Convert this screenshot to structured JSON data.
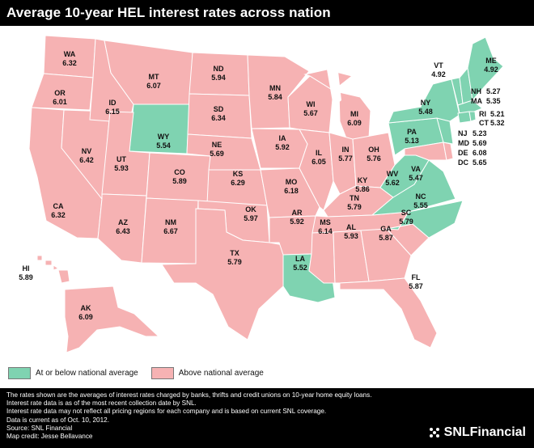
{
  "title": "Average 10-year HEL interest rates across nation",
  "colors": {
    "above": "#f6b2b3",
    "below": "#7fd3b1"
  },
  "legend": {
    "below_label": "At or below national average",
    "above_label": "Above national average"
  },
  "states": {
    "WA": {
      "name": "WA",
      "rate": "6.32",
      "category": "above"
    },
    "OR": {
      "name": "OR",
      "rate": "6.01",
      "category": "above"
    },
    "CA": {
      "name": "CA",
      "rate": "6.32",
      "category": "above"
    },
    "NV": {
      "name": "NV",
      "rate": "6.42",
      "category": "above"
    },
    "ID": {
      "name": "ID",
      "rate": "6.15",
      "category": "above"
    },
    "MT": {
      "name": "MT",
      "rate": "6.07",
      "category": "above"
    },
    "WY": {
      "name": "WY",
      "rate": "5.54",
      "category": "below"
    },
    "UT": {
      "name": "UT",
      "rate": "5.93",
      "category": "above"
    },
    "AZ": {
      "name": "AZ",
      "rate": "6.43",
      "category": "above"
    },
    "CO": {
      "name": "CO",
      "rate": "5.89",
      "category": "above"
    },
    "NM": {
      "name": "NM",
      "rate": "6.67",
      "category": "above"
    },
    "ND": {
      "name": "ND",
      "rate": "5.94",
      "category": "above"
    },
    "SD": {
      "name": "SD",
      "rate": "6.34",
      "category": "above"
    },
    "NE": {
      "name": "NE",
      "rate": "5.69",
      "category": "above"
    },
    "KS": {
      "name": "KS",
      "rate": "6.29",
      "category": "above"
    },
    "OK": {
      "name": "OK",
      "rate": "5.97",
      "category": "above"
    },
    "TX": {
      "name": "TX",
      "rate": "5.79",
      "category": "above"
    },
    "MN": {
      "name": "MN",
      "rate": "5.84",
      "category": "above"
    },
    "IA": {
      "name": "IA",
      "rate": "5.92",
      "category": "above"
    },
    "MO": {
      "name": "MO",
      "rate": "6.18",
      "category": "above"
    },
    "AR": {
      "name": "AR",
      "rate": "5.92",
      "category": "above"
    },
    "LA": {
      "name": "LA",
      "rate": "5.52",
      "category": "below"
    },
    "WI": {
      "name": "WI",
      "rate": "5.67",
      "category": "above"
    },
    "IL": {
      "name": "IL",
      "rate": "6.05",
      "category": "above"
    },
    "MI": {
      "name": "MI",
      "rate": "6.09",
      "category": "above"
    },
    "IN": {
      "name": "IN",
      "rate": "5.77",
      "category": "above"
    },
    "OH": {
      "name": "OH",
      "rate": "5.76",
      "category": "above"
    },
    "KY": {
      "name": "KY",
      "rate": "5.86",
      "category": "above"
    },
    "TN": {
      "name": "TN",
      "rate": "5.79",
      "category": "above"
    },
    "MS": {
      "name": "MS",
      "rate": "6.14",
      "category": "above"
    },
    "AL": {
      "name": "AL",
      "rate": "5.93",
      "category": "above"
    },
    "GA": {
      "name": "GA",
      "rate": "5.87",
      "category": "above"
    },
    "FL": {
      "name": "FL",
      "rate": "5.87",
      "category": "above"
    },
    "SC": {
      "name": "SC",
      "rate": "5.79",
      "category": "above"
    },
    "NC": {
      "name": "NC",
      "rate": "5.55",
      "category": "below"
    },
    "VA": {
      "name": "VA",
      "rate": "5.47",
      "category": "below"
    },
    "WV": {
      "name": "WV",
      "rate": "5.62",
      "category": "below"
    },
    "PA": {
      "name": "PA",
      "rate": "5.13",
      "category": "below"
    },
    "NY": {
      "name": "NY",
      "rate": "5.48",
      "category": "below"
    },
    "VT": {
      "name": "VT",
      "rate": "4.92",
      "category": "below"
    },
    "ME": {
      "name": "ME",
      "rate": "4.92",
      "category": "below"
    },
    "NH": {
      "name": "NH",
      "rate": "5.27",
      "category": "below"
    },
    "MA": {
      "name": "MA",
      "rate": "5.35",
      "category": "below"
    },
    "RI": {
      "name": "RI",
      "rate": "5.21",
      "category": "below"
    },
    "CT": {
      "name": "CT",
      "rate": "5.32",
      "category": "below"
    },
    "NJ": {
      "name": "NJ",
      "rate": "5.23",
      "category": "below"
    },
    "MD": {
      "name": "MD",
      "rate": "5.69",
      "category": "above"
    },
    "DE": {
      "name": "DE",
      "rate": "6.08",
      "category": "above"
    },
    "DC": {
      "name": "DC",
      "rate": "5.65",
      "category": "above"
    },
    "HI": {
      "name": "HI",
      "rate": "5.89",
      "category": "above"
    },
    "AK": {
      "name": "AK",
      "rate": "6.09",
      "category": "above"
    }
  },
  "footer": {
    "line1": "The rates shown are the averages of interest rates charged by banks, thrifts and credit unions on 10-year home equity loans.",
    "line2": "Interest rate data is as of the most recent collection date by SNL.",
    "line3": "Interest rate data may not reflect all pricing regions for each company and is based on current SNL coverage.",
    "line4": "Data is current as of Oct. 10, 2012.",
    "line5": "Source: SNL Financial",
    "line6": "Map credit: Jesse Bellavance"
  },
  "brand": {
    "text": "SNLFinancial",
    "icon": "snl-logo-icon"
  }
}
